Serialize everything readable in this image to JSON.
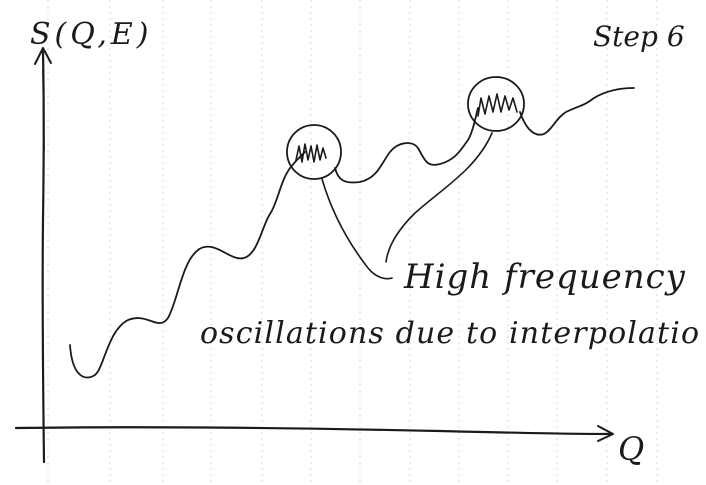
{
  "y_axis_label": "S(Q,E)",
  "x_axis_label": "Q",
  "step_label": "Step 6",
  "annotation": {
    "line1": "High frequency",
    "line2": "oscillations due to interpolatio"
  },
  "colors": {
    "paper": "#ffffff",
    "grid": "#d9d9d9",
    "ink": "#1a1a1a"
  }
}
